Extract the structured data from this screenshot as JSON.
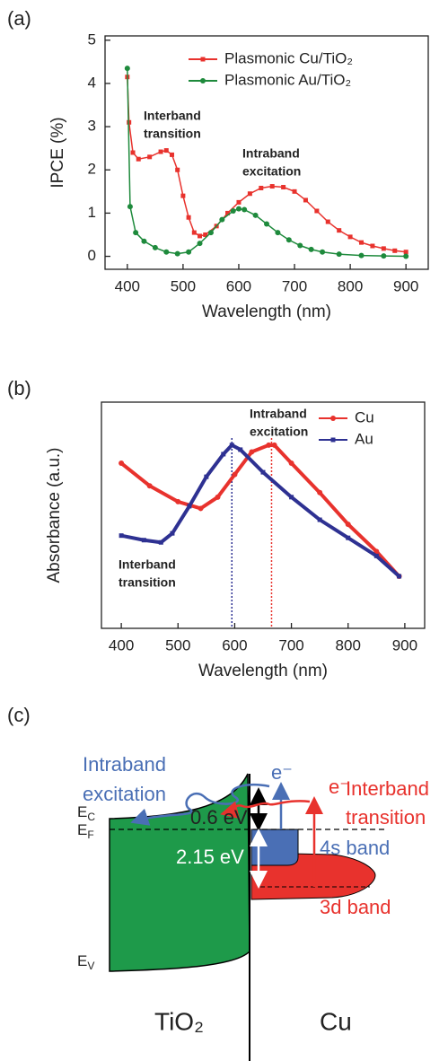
{
  "chart_data": [
    {
      "type": "line",
      "panel_label": "(a)",
      "x_label": "Wavelength (nm)",
      "y_label": "IPCE (%)",
      "xlim": [
        360,
        940
      ],
      "xticks": [
        400,
        500,
        600,
        700,
        800,
        900
      ],
      "ylim": [
        -0.3,
        5.1
      ],
      "yticks": [
        0,
        1,
        2,
        3,
        4,
        5
      ],
      "legend": "upper right",
      "series": [
        {
          "name": "Plasmonic Cu/TiO₂",
          "color": "#e8322d",
          "marker": "square",
          "x": [
            400,
            403,
            410,
            420,
            440,
            460,
            470,
            480,
            490,
            500,
            510,
            520,
            530,
            540,
            560,
            580,
            600,
            620,
            640,
            660,
            680,
            700,
            720,
            740,
            760,
            780,
            800,
            820,
            840,
            860,
            880,
            900
          ],
          "values": [
            4.15,
            3.1,
            2.4,
            2.25,
            2.3,
            2.42,
            2.45,
            2.35,
            2.0,
            1.4,
            0.9,
            0.55,
            0.47,
            0.5,
            0.7,
            1.0,
            1.25,
            1.45,
            1.58,
            1.62,
            1.6,
            1.5,
            1.3,
            1.05,
            0.8,
            0.6,
            0.45,
            0.32,
            0.24,
            0.18,
            0.13,
            0.1
          ]
        },
        {
          "name": "Plasmonic Au/TiO₂",
          "color": "#1e8a3c",
          "marker": "circle",
          "x": [
            400,
            405,
            415,
            430,
            450,
            470,
            490,
            510,
            530,
            550,
            570,
            590,
            600,
            610,
            630,
            650,
            670,
            690,
            710,
            730,
            750,
            780,
            820,
            860,
            900
          ],
          "values": [
            4.35,
            1.15,
            0.55,
            0.35,
            0.2,
            0.1,
            0.06,
            0.1,
            0.3,
            0.55,
            0.85,
            1.05,
            1.1,
            1.08,
            0.95,
            0.75,
            0.55,
            0.38,
            0.25,
            0.16,
            0.1,
            0.05,
            0.02,
            0.01,
            0
          ]
        }
      ],
      "annotations": [
        {
          "lines": [
            "Interband",
            "transition"
          ]
        },
        {
          "lines": [
            "Intraband",
            "excitation"
          ]
        }
      ]
    },
    {
      "type": "line",
      "panel_label": "(b)",
      "x_label": "Wavelength (nm)",
      "y_label": "Absorbance (a.u.)",
      "xlim": [
        365,
        935
      ],
      "xticks": [
        400,
        500,
        600,
        700,
        800,
        900
      ],
      "ylim": [
        0,
        1
      ],
      "legend": "upper right",
      "series": [
        {
          "name": "Cu",
          "color": "#e8322d",
          "marker": "circle",
          "x": [
            400,
            450,
            500,
            540,
            570,
            600,
            630,
            660,
            670,
            700,
            750,
            800,
            850,
            890
          ],
          "values": [
            0.73,
            0.63,
            0.56,
            0.53,
            0.58,
            0.68,
            0.78,
            0.81,
            0.81,
            0.73,
            0.6,
            0.46,
            0.34,
            0.23
          ]
        },
        {
          "name": "Au",
          "color": "#2e3192",
          "marker": "square",
          "x": [
            400,
            440,
            470,
            490,
            520,
            550,
            580,
            595,
            610,
            650,
            700,
            750,
            800,
            850,
            890
          ],
          "values": [
            0.41,
            0.39,
            0.38,
            0.42,
            0.54,
            0.67,
            0.77,
            0.81,
            0.79,
            0.69,
            0.58,
            0.48,
            0.4,
            0.32,
            0.23
          ]
        }
      ],
      "reference_lines": [
        {
          "x": 595,
          "color": "#2e3192"
        },
        {
          "x": 665,
          "color": "#e8322d"
        }
      ],
      "annotations": [
        {
          "lines": [
            "Intraband",
            "excitation"
          ]
        },
        {
          "lines": [
            "Interband",
            "transition"
          ]
        }
      ]
    }
  ],
  "diagram": {
    "panel_label": "(c)",
    "intraband": [
      "Intraband",
      "excitation"
    ],
    "interband": [
      "Interband",
      "transition"
    ],
    "e_blue": "e⁻",
    "e_red": "e⁻",
    "ec": {
      "main": "E",
      "sub": "C"
    },
    "ef": {
      "main": "E",
      "sub": "F"
    },
    "ev": {
      "main": "E",
      "sub": "V"
    },
    "gap1": "0.6 eV",
    "gap2": "2.15 eV",
    "band_4s": "4s band",
    "band_3d": "3d band",
    "left": "TiO₂",
    "right": "Cu"
  }
}
